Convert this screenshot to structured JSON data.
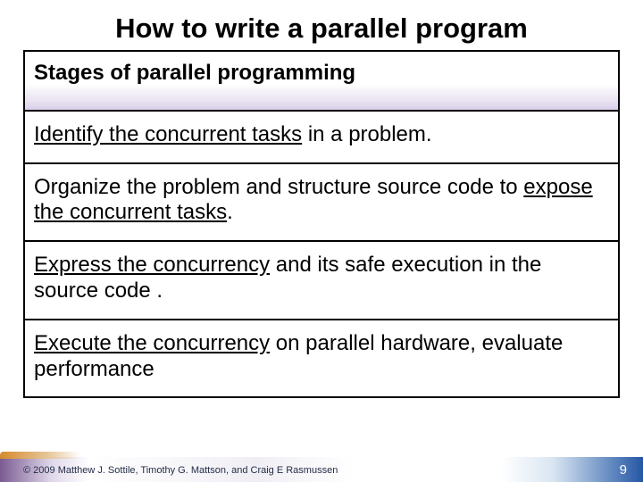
{
  "title": {
    "text": "How to write a parallel program",
    "fontsize": 31,
    "color": "#000000"
  },
  "table": {
    "border_color": "#000000",
    "border_width": 2,
    "header": {
      "text": "Stages of parallel programming",
      "fontsize": 24,
      "fontweight": "bold",
      "bg_gradient": [
        "#ffffff",
        "#e9e3f2",
        "#d8ceea"
      ]
    },
    "rows": [
      {
        "ul": "Identify the concurrent tasks",
        "rest": " in a problem.",
        "fontsize": 24
      },
      {
        "pre": "Organize the problem and structure source code to ",
        "ul": "expose the concurrent tasks",
        "post": ".",
        "fontsize": 24
      },
      {
        "ul": "Express the concurrency",
        "rest": " and its safe execution in the source code .",
        "fontsize": 24
      },
      {
        "ul": "Execute the concurrency",
        "rest": " on parallel hardware, evaluate performance",
        "fontsize": 24
      }
    ]
  },
  "footer": {
    "copyright": "© 2009 Matthew J. Sottile, Timothy G. Mattson, and Craig E Rasmussen",
    "copyright_fontsize": 11,
    "copyright_color": "#1f2a44",
    "pagenum": "9",
    "pagenum_fontsize": 15,
    "pagenum_color": "#ffffff",
    "gradient_colors": [
      "#7a5b92",
      "#e0d8ea",
      "#ffffff",
      "#2457a5"
    ]
  }
}
